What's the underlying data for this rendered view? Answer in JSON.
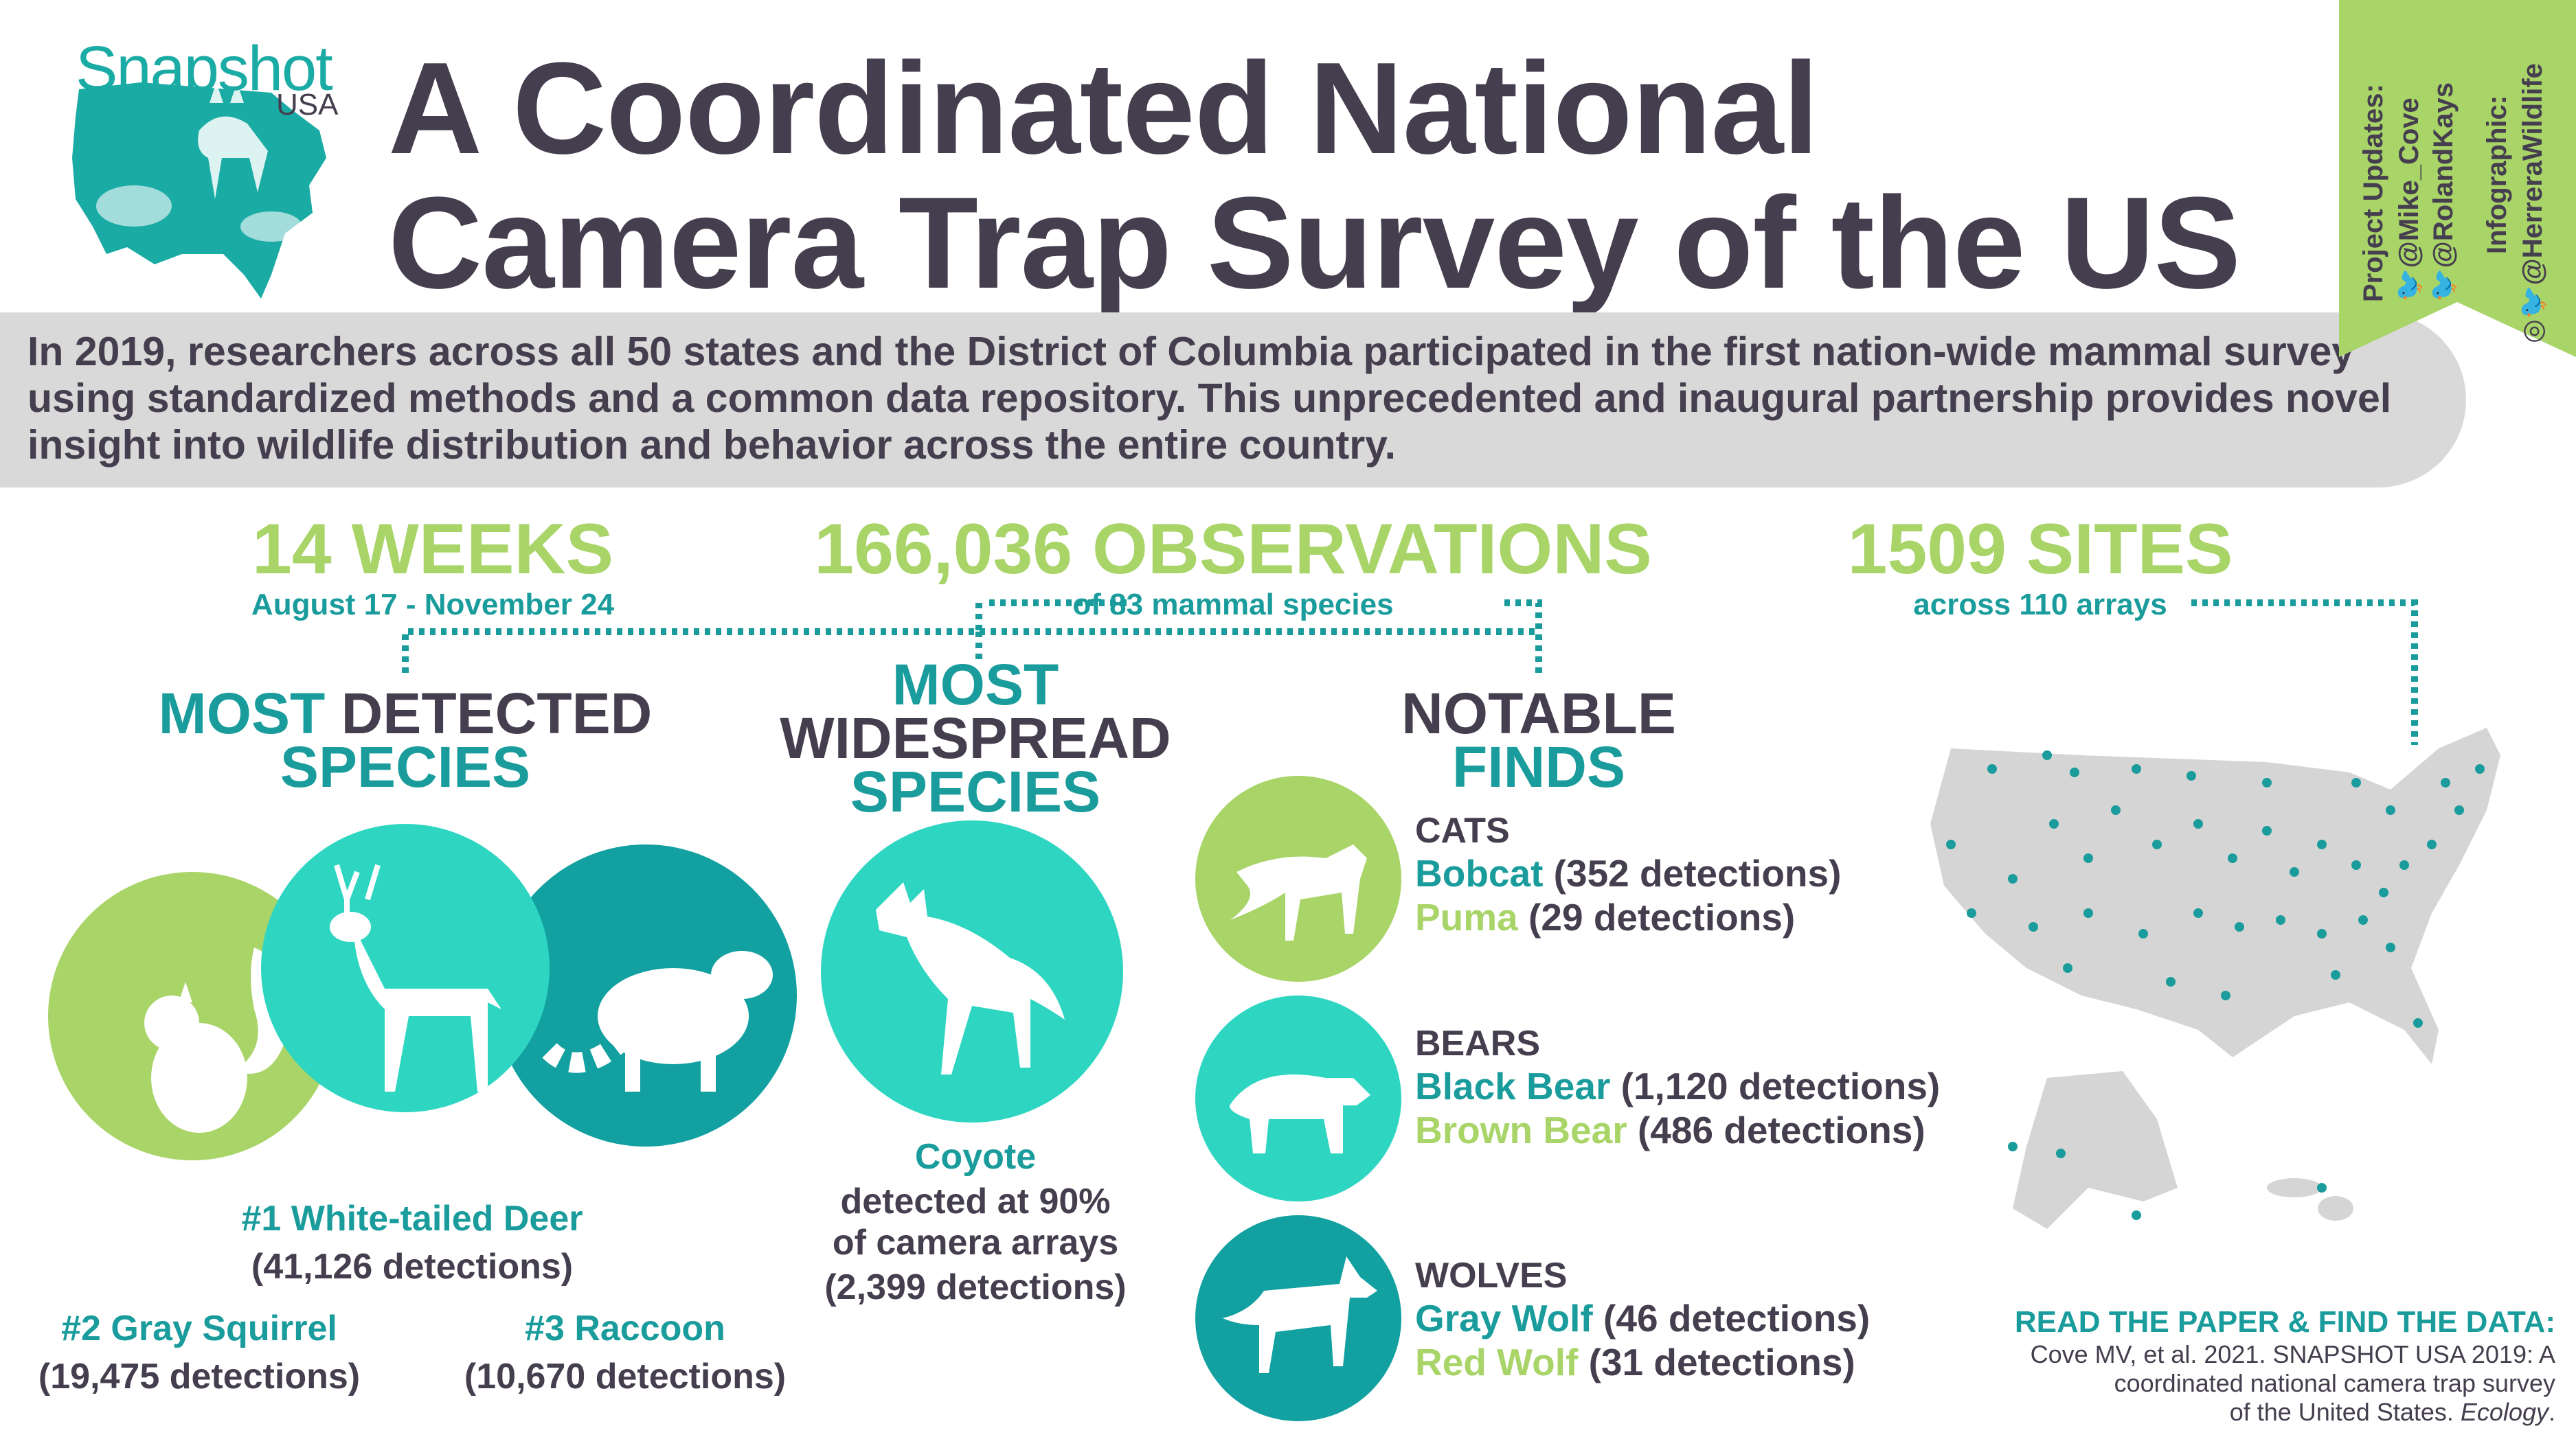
{
  "logo": {
    "name": "Snapshot",
    "sub": "USA"
  },
  "title": {
    "line1": "A Coordinated National",
    "line2": "Camera Trap Survey of the US"
  },
  "intro": "In 2019, researchers across all 50 states and the District of Columbia participated in the first nation-wide mammal survey using standardized methods and a common data repository. This unprecedented and inaugural partnership provides novel insight into wildlife distribution and behavior across the entire country.",
  "ribbon": {
    "updates_label": "Project Updates:",
    "handle1": "@Mike_Cove",
    "handle2": "@RolandKays",
    "infographic_label": "Infographic:",
    "handle3": "@HerreraWildlife"
  },
  "stats": {
    "weeks": {
      "value": "14 WEEKS",
      "sub": "August 17 - November 24"
    },
    "observations": {
      "value": "166,036 OBSERVATIONS",
      "sub": "of 83 mammal species"
    },
    "sites": {
      "value": "1509 SITES",
      "sub": "across 110 arrays"
    }
  },
  "most_detected": {
    "head1a": "MOST",
    "head1b": "DETECTED",
    "head2": "SPECIES",
    "first_name": "#1 White-tailed Deer",
    "first_count": "(41,126 detections)",
    "second_name": "#2 Gray Squirrel",
    "second_count": "(19,475 detections)",
    "third_name": "#3 Raccoon",
    "third_count": "(10,670 detections)"
  },
  "most_widespread": {
    "head1": "MOST",
    "head2": "WIDESPREAD",
    "head3": "SPECIES",
    "name": "Coyote",
    "desc1": "detected at 90%",
    "desc2": "of camera arrays",
    "count": "(2,399 detections)"
  },
  "notable": {
    "head1": "NOTABLE",
    "head2": "FINDS",
    "groups": [
      {
        "category": "CATS",
        "a_name": "Bobcat",
        "a_count": " (352 detections)",
        "b_name": "Puma",
        "b_count": " (29 detections)"
      },
      {
        "category": "BEARS",
        "a_name": "Black Bear",
        "a_count": " (1,120 detections)",
        "b_name": "Brown Bear",
        "b_count": " (486 detections)"
      },
      {
        "category": "WOLVES",
        "a_name": "Gray Wolf",
        "a_count": " (46 detections)",
        "b_name": "Red Wolf",
        "b_count": " (31 detections)"
      }
    ]
  },
  "paper": {
    "heading": "READ THE PAPER & FIND THE DATA:",
    "line1": "Cove MV, et al. 2021. SNAPSHOT USA 2019: A",
    "line2": "coordinated national camera trap survey",
    "line3": "of the United States.",
    "journal": "Ecology"
  },
  "colors": {
    "lime": "#a8d468",
    "teal_light": "#2ed6c2",
    "teal_dark": "#12a0a0",
    "dark": "#453e4e",
    "map_gray": "#d5d5d5",
    "dot": "#1a9c9c"
  }
}
